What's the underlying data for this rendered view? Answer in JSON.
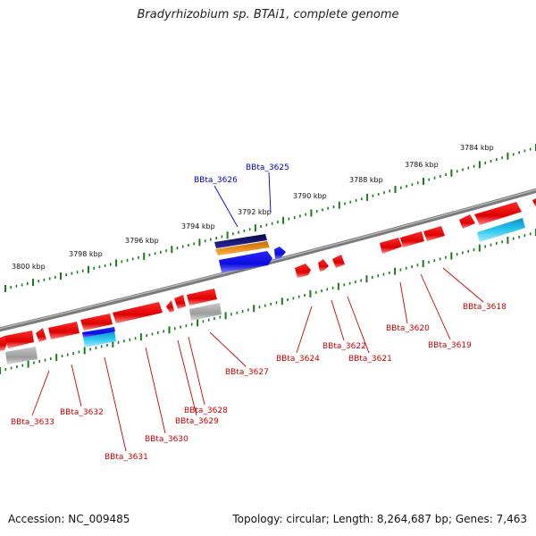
{
  "title": "Bradyrhizobium sp. BTAi1, complete genome",
  "footer": {
    "accession": "Accession: NC_009485",
    "summary": "Topology: circular; Length: 8,264,687 bp; Genes: 7,463"
  },
  "colors": {
    "backbone": "#7a7a7a",
    "tick": "#1a7a1a",
    "gene_red": "#e00000",
    "gene_blue": "#1010ee",
    "gene_grey": "#a9a9a9",
    "gene_cyan": "#20b8e8",
    "gene_orange": "#f08a10",
    "gene_navy": "#101070",
    "label_red": "#cc0000",
    "label_blue": "#0000bb"
  },
  "ruler_labels": [
    {
      "text": "3784 kbp"
    },
    {
      "text": "3786 kbp"
    },
    {
      "text": "3788 kbp"
    },
    {
      "text": "3790 kbp"
    },
    {
      "text": "3792 kbp"
    },
    {
      "text": "3794 kbp"
    },
    {
      "text": "3796 kbp"
    },
    {
      "text": "3798 kbp"
    },
    {
      "text": "3800 kbp"
    }
  ],
  "gene_labels": [
    {
      "text": "BBta_3625",
      "color": "blue"
    },
    {
      "text": "BBta_3626",
      "color": "blue"
    },
    {
      "text": "BBta_3618",
      "color": "red"
    },
    {
      "text": "BBta_3619",
      "color": "red"
    },
    {
      "text": "BBta_3620",
      "color": "red"
    },
    {
      "text": "BBta_3621",
      "color": "red"
    },
    {
      "text": "BBta_3622",
      "color": "red"
    },
    {
      "text": "BBta_3624",
      "color": "red"
    },
    {
      "text": "BBta_3627",
      "color": "red"
    },
    {
      "text": "BBta_3628",
      "color": "red"
    },
    {
      "text": "BBta_3629",
      "color": "red"
    },
    {
      "text": "BBta_3630",
      "color": "red"
    },
    {
      "text": "BBta_3631",
      "color": "red"
    },
    {
      "text": "BBta_3632",
      "color": "red"
    },
    {
      "text": "BBta_3633",
      "color": "red"
    }
  ]
}
